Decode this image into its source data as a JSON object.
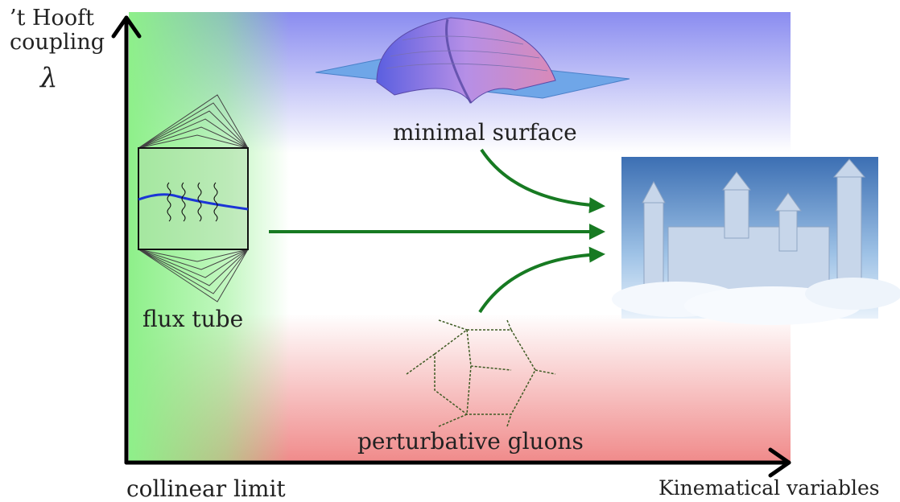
{
  "y_axis": {
    "label_line1": "’t Hooft",
    "label_line2": "coupling",
    "symbol": "λ"
  },
  "x_axis": {
    "label": "Kinematical variables"
  },
  "origin_label": "collinear limit",
  "regions": {
    "strong_coupling": {
      "label": "minimal surface",
      "color": "#8a8cf0"
    },
    "perturbative": {
      "label": "perturbative gluons",
      "color": "#f08a8a"
    },
    "collinear": {
      "label": "flux tube",
      "color": "#8ef08a"
    }
  },
  "target": {
    "name": "castle-in-the-clouds-image"
  },
  "arrow_color": "#177a22"
}
